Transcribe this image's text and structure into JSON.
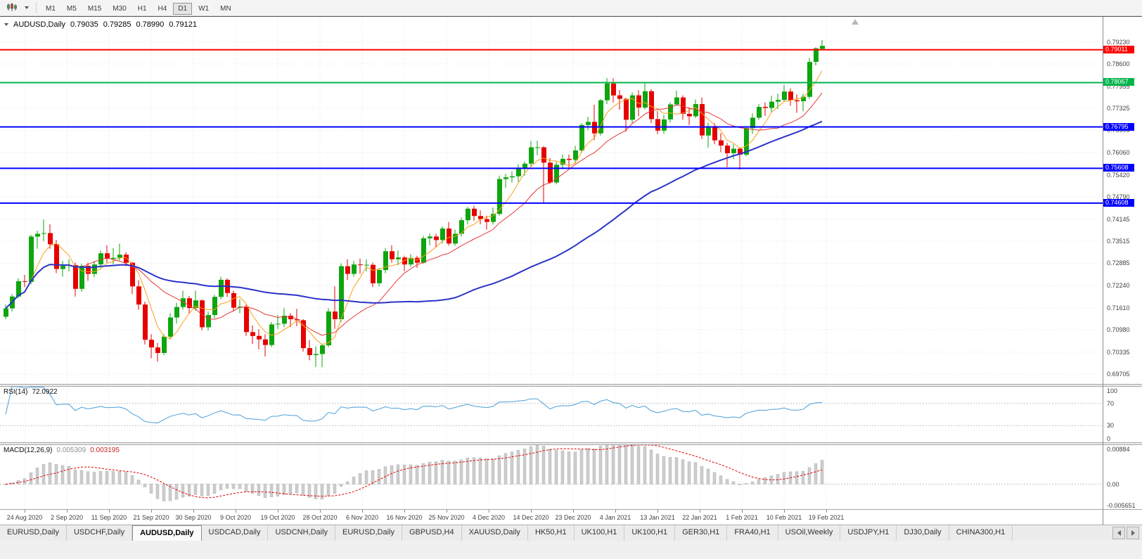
{
  "toolbar": {
    "timeframes": [
      "M1",
      "M5",
      "M15",
      "M30",
      "H1",
      "H4",
      "D1",
      "W1",
      "MN"
    ],
    "active_timeframe": "D1"
  },
  "chart": {
    "title": {
      "symbol": "AUDUSD,Daily",
      "open": "0.79035",
      "high": "0.79285",
      "low": "0.78990",
      "close": "0.79121"
    },
    "price_axis": {
      "min": 0.69423,
      "max": 0.79952,
      "labels": [
        "0.79230",
        "0.78600",
        "0.77955",
        "0.77325",
        "0.76695",
        "0.76060",
        "0.75420",
        "0.74790",
        "0.74145",
        "0.73515",
        "0.72885",
        "0.72240",
        "0.71610",
        "0.70980",
        "0.70335",
        "0.69705"
      ]
    },
    "hlines": [
      {
        "price": 0.79011,
        "label": "0.79011",
        "color": "#ff0000"
      },
      {
        "price": 0.78067,
        "label": "0.78067",
        "color": "#00b44b"
      },
      {
        "price": 0.76795,
        "label": "0.76795",
        "color": "#0000ff"
      },
      {
        "price": 0.75608,
        "label": "0.75608",
        "color": "#0000ff"
      },
      {
        "price": 0.74608,
        "label": "0.74608",
        "color": "#0000ff"
      }
    ],
    "date_axis": {
      "labels": [
        "24 Aug 2020",
        "2 Sep 2020",
        "11 Sep 2020",
        "21 Sep 2020",
        "30 Sep 2020",
        "9 Oct 2020",
        "19 Oct 2020",
        "28 Oct 2020",
        "6 Nov 2020",
        "16 Nov 2020",
        "25 Nov 2020",
        "4 Dec 2020",
        "14 Dec 2020",
        "23 Dec 2020",
        "4 Jan 2021",
        "13 Jan 2021",
        "22 Jan 2021",
        "1 Feb 2021",
        "10 Feb 2021",
        "19 Feb 2021"
      ]
    },
    "ma": [
      {
        "period": 5,
        "color": "#f7a11a",
        "width": 1
      },
      {
        "period": 13,
        "color": "#e53935",
        "width": 1
      },
      {
        "period": 50,
        "color": "#2b32c8",
        "width": 2
      }
    ],
    "indicators": {
      "rsi": {
        "label": "RSI(14)",
        "value": "72.0922",
        "levels": [
          "100",
          "70",
          "30",
          "0"
        ],
        "period": 14,
        "color": "#4aa0dc"
      },
      "macd": {
        "label": "MACD(12,26,9)",
        "value_main": "0.005309",
        "value_signal": "0.003195",
        "axis": [
          "0.00884",
          "0.00",
          "-0.005651"
        ],
        "range": {
          "min": -0.005651,
          "max": 0.00884
        },
        "bar_color": "#cdcdcd",
        "signal_color": "#e00000"
      }
    }
  },
  "chart_data": {
    "type": "candlestick",
    "symbol": "AUDUSD",
    "timeframe": "Daily",
    "candles": [
      [
        0.7135,
        0.717,
        0.7128,
        0.7159
      ],
      [
        0.7159,
        0.72,
        0.715,
        0.7193
      ],
      [
        0.7193,
        0.7245,
        0.7188,
        0.7237
      ],
      [
        0.7237,
        0.7255,
        0.722,
        0.7235
      ],
      [
        0.7235,
        0.737,
        0.7228,
        0.7365
      ],
      [
        0.7365,
        0.7382,
        0.733,
        0.7373
      ],
      [
        0.7373,
        0.7414,
        0.7352,
        0.7375
      ],
      [
        0.7375,
        0.74,
        0.733,
        0.7343
      ],
      [
        0.7343,
        0.7355,
        0.726,
        0.7272
      ],
      [
        0.7272,
        0.7295,
        0.725,
        0.7281
      ],
      [
        0.7281,
        0.73,
        0.7265,
        0.7283
      ],
      [
        0.7283,
        0.729,
        0.7193,
        0.7215
      ],
      [
        0.7215,
        0.7287,
        0.7207,
        0.7281
      ],
      [
        0.7281,
        0.729,
        0.7238,
        0.7258
      ],
      [
        0.7258,
        0.7295,
        0.7248,
        0.7285
      ],
      [
        0.7285,
        0.7325,
        0.7275,
        0.7317
      ],
      [
        0.7317,
        0.734,
        0.729,
        0.7301
      ],
      [
        0.7301,
        0.7332,
        0.7285,
        0.7304
      ],
      [
        0.7304,
        0.7345,
        0.7296,
        0.7313
      ],
      [
        0.7313,
        0.732,
        0.728,
        0.729
      ],
      [
        0.729,
        0.7292,
        0.72,
        0.7222
      ],
      [
        0.7222,
        0.724,
        0.7155,
        0.717
      ],
      [
        0.717,
        0.7178,
        0.7055,
        0.7069
      ],
      [
        0.7069,
        0.7085,
        0.7016,
        0.7047
      ],
      [
        0.7047,
        0.706,
        0.7006,
        0.7031
      ],
      [
        0.7031,
        0.7085,
        0.7025,
        0.7078
      ],
      [
        0.7078,
        0.7145,
        0.707,
        0.7133
      ],
      [
        0.7133,
        0.7175,
        0.7115,
        0.7163
      ],
      [
        0.7163,
        0.721,
        0.7155,
        0.7188
      ],
      [
        0.7188,
        0.7195,
        0.7145,
        0.716
      ],
      [
        0.716,
        0.721,
        0.7152,
        0.7182
      ],
      [
        0.7182,
        0.7185,
        0.7096,
        0.7105
      ],
      [
        0.7105,
        0.715,
        0.7095,
        0.714
      ],
      [
        0.714,
        0.7198,
        0.713,
        0.7192
      ],
      [
        0.7192,
        0.725,
        0.7185,
        0.7241
      ],
      [
        0.7241,
        0.7245,
        0.7192,
        0.7203
      ],
      [
        0.7203,
        0.721,
        0.715,
        0.7161
      ],
      [
        0.7161,
        0.7185,
        0.7145,
        0.7164
      ],
      [
        0.7164,
        0.717,
        0.708,
        0.7091
      ],
      [
        0.7091,
        0.711,
        0.7057,
        0.708
      ],
      [
        0.708,
        0.7099,
        0.7042,
        0.707
      ],
      [
        0.707,
        0.7085,
        0.7021,
        0.7054
      ],
      [
        0.7054,
        0.712,
        0.7048,
        0.7113
      ],
      [
        0.7113,
        0.714,
        0.71,
        0.7115
      ],
      [
        0.7115,
        0.716,
        0.7105,
        0.7138
      ],
      [
        0.7138,
        0.7145,
        0.7105,
        0.7128
      ],
      [
        0.7128,
        0.7158,
        0.7108,
        0.7125
      ],
      [
        0.7125,
        0.7128,
        0.7035,
        0.7045
      ],
      [
        0.7045,
        0.7068,
        0.701,
        0.7025
      ],
      [
        0.7025,
        0.705,
        0.6991,
        0.7028
      ],
      [
        0.7028,
        0.7058,
        0.699,
        0.7053
      ],
      [
        0.7053,
        0.716,
        0.7048,
        0.715
      ],
      [
        0.715,
        0.7222,
        0.71,
        0.7128
      ],
      [
        0.7128,
        0.7288,
        0.712,
        0.728
      ],
      [
        0.728,
        0.73,
        0.724,
        0.7258
      ],
      [
        0.7258,
        0.7295,
        0.725,
        0.7285
      ],
      [
        0.7285,
        0.7302,
        0.7258,
        0.7284
      ],
      [
        0.7284,
        0.73,
        0.7265,
        0.7284
      ],
      [
        0.7284,
        0.729,
        0.722,
        0.7231
      ],
      [
        0.7231,
        0.7275,
        0.7222,
        0.7269
      ],
      [
        0.7269,
        0.7332,
        0.726,
        0.7323
      ],
      [
        0.7323,
        0.734,
        0.729,
        0.73
      ],
      [
        0.73,
        0.7325,
        0.7283,
        0.7305
      ],
      [
        0.7305,
        0.731,
        0.7265,
        0.7285
      ],
      [
        0.7285,
        0.7315,
        0.7278,
        0.7304
      ],
      [
        0.7304,
        0.731,
        0.7275,
        0.729
      ],
      [
        0.729,
        0.7367,
        0.7287,
        0.736
      ],
      [
        0.736,
        0.7374,
        0.734,
        0.7365
      ],
      [
        0.7365,
        0.7373,
        0.7333,
        0.7355
      ],
      [
        0.7355,
        0.7395,
        0.7345,
        0.7388
      ],
      [
        0.7388,
        0.7407,
        0.7339,
        0.7345
      ],
      [
        0.7345,
        0.7385,
        0.7338,
        0.7373
      ],
      [
        0.7373,
        0.742,
        0.7365,
        0.7412
      ],
      [
        0.7412,
        0.745,
        0.74,
        0.7445
      ],
      [
        0.7445,
        0.7453,
        0.741,
        0.7424
      ],
      [
        0.7424,
        0.744,
        0.74,
        0.7415
      ],
      [
        0.7415,
        0.7425,
        0.7385,
        0.7407
      ],
      [
        0.7407,
        0.7448,
        0.74,
        0.743
      ],
      [
        0.743,
        0.754,
        0.7425,
        0.753
      ],
      [
        0.753,
        0.7545,
        0.7505,
        0.7535
      ],
      [
        0.7535,
        0.7552,
        0.752,
        0.7538
      ],
      [
        0.7538,
        0.7572,
        0.7522,
        0.7559
      ],
      [
        0.7559,
        0.758,
        0.754,
        0.7574
      ],
      [
        0.7574,
        0.7639,
        0.7565,
        0.7621
      ],
      [
        0.7621,
        0.764,
        0.7598,
        0.7621
      ],
      [
        0.7621,
        0.7624,
        0.7462,
        0.7577
      ],
      [
        0.7577,
        0.759,
        0.7516,
        0.752
      ],
      [
        0.752,
        0.758,
        0.7515,
        0.7571
      ],
      [
        0.7571,
        0.76,
        0.756,
        0.7588
      ],
      [
        0.7588,
        0.76,
        0.7562,
        0.7585
      ],
      [
        0.7585,
        0.7625,
        0.7575,
        0.7612
      ],
      [
        0.7612,
        0.769,
        0.7605,
        0.7685
      ],
      [
        0.7685,
        0.7708,
        0.767,
        0.7694
      ],
      [
        0.7694,
        0.7743,
        0.7642,
        0.7661
      ],
      [
        0.7661,
        0.776,
        0.7655,
        0.7756
      ],
      [
        0.7756,
        0.782,
        0.7745,
        0.7804
      ],
      [
        0.7804,
        0.7819,
        0.7749,
        0.777
      ],
      [
        0.777,
        0.7785,
        0.7729,
        0.776
      ],
      [
        0.776,
        0.7763,
        0.7666,
        0.77
      ],
      [
        0.77,
        0.7779,
        0.769,
        0.777
      ],
      [
        0.777,
        0.7785,
        0.771,
        0.7735
      ],
      [
        0.7735,
        0.7805,
        0.773,
        0.7782
      ],
      [
        0.7782,
        0.7788,
        0.769,
        0.7702
      ],
      [
        0.7702,
        0.7725,
        0.7659,
        0.7669
      ],
      [
        0.7669,
        0.7714,
        0.766,
        0.7701
      ],
      [
        0.7701,
        0.775,
        0.7692,
        0.7744
      ],
      [
        0.7744,
        0.7784,
        0.774,
        0.7764
      ],
      [
        0.7764,
        0.777,
        0.77,
        0.7717
      ],
      [
        0.7717,
        0.7736,
        0.7685,
        0.771
      ],
      [
        0.771,
        0.7758,
        0.7705,
        0.7745
      ],
      [
        0.7745,
        0.7764,
        0.7645,
        0.7655
      ],
      [
        0.7655,
        0.7692,
        0.762,
        0.768
      ],
      [
        0.768,
        0.769,
        0.763,
        0.7641
      ],
      [
        0.7641,
        0.7662,
        0.7607,
        0.7626
      ],
      [
        0.7626,
        0.7634,
        0.7564,
        0.7604
      ],
      [
        0.7604,
        0.763,
        0.7587,
        0.7617
      ],
      [
        0.7617,
        0.7621,
        0.7557,
        0.76
      ],
      [
        0.76,
        0.768,
        0.7595,
        0.7676
      ],
      [
        0.7676,
        0.7718,
        0.766,
        0.7706
      ],
      [
        0.7706,
        0.7745,
        0.77,
        0.7737
      ],
      [
        0.7737,
        0.775,
        0.7711,
        0.7734
      ],
      [
        0.7734,
        0.7769,
        0.7722,
        0.7752
      ],
      [
        0.7752,
        0.7775,
        0.7731,
        0.7757
      ],
      [
        0.7757,
        0.78,
        0.7752,
        0.7781
      ],
      [
        0.7781,
        0.779,
        0.774,
        0.7756
      ],
      [
        0.7756,
        0.7773,
        0.772,
        0.7753
      ],
      [
        0.7753,
        0.7775,
        0.7725,
        0.7766
      ],
      [
        0.7766,
        0.7877,
        0.776,
        0.7866
      ],
      [
        0.7866,
        0.7908,
        0.7856,
        0.7905
      ],
      [
        0.79035,
        0.79285,
        0.7899,
        0.79121
      ]
    ]
  },
  "tabs": {
    "items": [
      "EURUSD,Daily",
      "USDCHF,Daily",
      "AUDUSD,Daily",
      "USDCAD,Daily",
      "USDCNH,Daily",
      "EURUSD,Daily",
      "GBPUSD,H4",
      "XAUUSD,Daily",
      "HK50,H1",
      "UK100,H1",
      "UK100,H1",
      "GER30,H1",
      "FRA40,H1",
      "USOil,Weekly",
      "USDJPY,H1",
      "DJ30,Daily",
      "CHINA300,H1"
    ],
    "active_index": 2
  },
  "colors": {
    "bull": "#0ea50e",
    "bear": "#e60000",
    "grid": "#e7e7e7",
    "level_dotted": "#c4c4c4"
  }
}
